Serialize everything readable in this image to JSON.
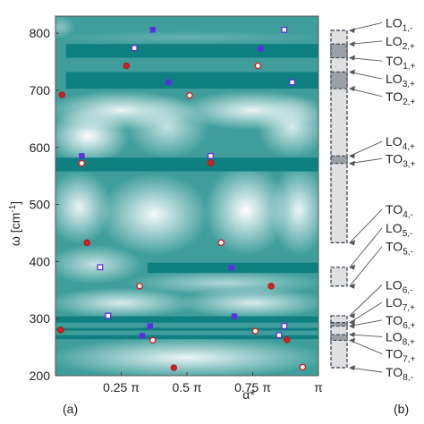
{
  "chart_data": {
    "type": "heatmap",
    "panels": [
      {
        "label": "(a)",
        "description": "2D contour map of ω vs α* with two marker series"
      },
      {
        "label": "(b)",
        "description": "mode band bar with labels"
      }
    ],
    "xlabel": "α*",
    "ylabel": "ω [cm",
    "ylabel_sup": "-1",
    "ylabel_close": "]",
    "xlim": [
      0,
      1
    ],
    "ylim": [
      200,
      830
    ],
    "x_ticks": [
      {
        "value": 0.25,
        "label": "0.25 π"
      },
      {
        "value": 0.5,
        "label": "0.5 π"
      },
      {
        "value": 0.75,
        "label": "0.75 π"
      },
      {
        "value": 1.0,
        "label": "π"
      }
    ],
    "y_ticks": [
      200,
      300,
      400,
      500,
      600,
      700,
      800
    ],
    "colors": {
      "dark": "#0f8080",
      "light": "#ffffff",
      "filled_circle": "#d42020",
      "filled_square": "#5b2fe0",
      "band_fill": "#e0e0e0",
      "band_dark": "#9aa0a4",
      "dash": "#3a4a5a"
    },
    "dark_bands": [
      {
        "y1": 757,
        "y2": 781,
        "x_start": 0.04,
        "x_end": 1.0
      },
      {
        "y1": 703,
        "y2": 732,
        "x_start": 0.04,
        "x_end": 1.0
      },
      {
        "y1": 558,
        "y2": 582,
        "x_start": 0.0,
        "x_end": 1.0
      },
      {
        "y1": 380,
        "y2": 398,
        "x_start": 0.35,
        "x_end": 1.0
      },
      {
        "y1": 293,
        "y2": 304,
        "x_start": 0.0,
        "x_end": 1.0
      },
      {
        "y1": 279,
        "y2": 284,
        "x_start": 0.0,
        "x_end": 1.0
      },
      {
        "y1": 264,
        "y2": 271,
        "x_start": 0.0,
        "x_end": 1.0
      }
    ],
    "series": [
      {
        "name": "",
        "marker": "filled_circle",
        "points": [
          {
            "x": 0.02,
            "y": 280
          },
          {
            "x": 0.025,
            "y": 692
          },
          {
            "x": 0.12,
            "y": 433
          },
          {
            "x": 0.27,
            "y": 743
          },
          {
            "x": 0.45,
            "y": 214
          },
          {
            "x": 0.59,
            "y": 573
          },
          {
            "x": 0.82,
            "y": 357
          },
          {
            "x": 0.88,
            "y": 263
          }
        ]
      },
      {
        "name": "",
        "marker": "open_circle",
        "points": [
          {
            "x": 0.1,
            "y": 572
          },
          {
            "x": 0.32,
            "y": 357
          },
          {
            "x": 0.37,
            "y": 262
          },
          {
            "x": 0.51,
            "y": 691
          },
          {
            "x": 0.63,
            "y": 433
          },
          {
            "x": 0.76,
            "y": 278
          },
          {
            "x": 0.77,
            "y": 743
          },
          {
            "x": 0.94,
            "y": 215
          }
        ]
      },
      {
        "name": "",
        "marker": "filled_square",
        "points": [
          {
            "x": 0.1,
            "y": 585
          },
          {
            "x": 0.33,
            "y": 270
          },
          {
            "x": 0.36,
            "y": 287
          },
          {
            "x": 0.37,
            "y": 806
          },
          {
            "x": 0.43,
            "y": 714
          },
          {
            "x": 0.67,
            "y": 389
          },
          {
            "x": 0.68,
            "y": 304
          },
          {
            "x": 0.78,
            "y": 773
          }
        ]
      },
      {
        "name": "",
        "marker": "open_square",
        "points": [
          {
            "x": 0.17,
            "y": 390
          },
          {
            "x": 0.2,
            "y": 305
          },
          {
            "x": 0.3,
            "y": 774
          },
          {
            "x": 0.59,
            "y": 585
          },
          {
            "x": 0.85,
            "y": 271
          },
          {
            "x": 0.87,
            "y": 287
          },
          {
            "x": 0.87,
            "y": 806
          },
          {
            "x": 0.9,
            "y": 714
          }
        ]
      }
    ],
    "mode_bar": {
      "segments": [
        {
          "y1": 805,
          "y2": 433,
          "style": "light"
        },
        {
          "y1": 781,
          "y2": 757,
          "style": "dark"
        },
        {
          "y1": 732,
          "y2": 703,
          "style": "dark"
        },
        {
          "y1": 585,
          "y2": 572,
          "style": "dark"
        },
        {
          "y1": 390,
          "y2": 357,
          "style": "light"
        },
        {
          "y1": 305,
          "y2": 214,
          "style": "light"
        },
        {
          "y1": 293,
          "y2": 287,
          "style": "dark"
        },
        {
          "y1": 272,
          "y2": 262,
          "style": "dark"
        }
      ],
      "labels": [
        {
          "main": "LO",
          "sub": "1,-",
          "y": 812,
          "target": 805
        },
        {
          "main": "LO",
          "sub": "2,+",
          "y": 780,
          "target": 781
        },
        {
          "main": "TO",
          "sub": "1,+",
          "y": 745,
          "target": 757
        },
        {
          "main": "LO",
          "sub": "3,+",
          "y": 714,
          "target": 732
        },
        {
          "main": "TO",
          "sub": "2,+",
          "y": 683,
          "target": 703
        },
        {
          "main": "LO",
          "sub": "4,+",
          "y": 604,
          "target": 585
        },
        {
          "main": "TO",
          "sub": "3,+",
          "y": 574,
          "target": 572
        },
        {
          "main": "TO",
          "sub": "4,-",
          "y": 485,
          "target": 433
        },
        {
          "main": "LO",
          "sub": "5,-",
          "y": 452,
          "target": 390
        },
        {
          "main": "TO",
          "sub": "5,-",
          "y": 420,
          "target": 357
        },
        {
          "main": "LO",
          "sub": "6,-",
          "y": 353,
          "target": 305
        },
        {
          "main": "LO",
          "sub": "7,+",
          "y": 322,
          "target": 293
        },
        {
          "main": "TO",
          "sub": "6,+",
          "y": 291,
          "target": 287
        },
        {
          "main": "LO",
          "sub": "8,+",
          "y": 262,
          "target": 272
        },
        {
          "main": "TO",
          "sub": "7,+",
          "y": 232,
          "target": 262
        },
        {
          "main": "TO",
          "sub": "8,-",
          "y": 200,
          "target": 214
        }
      ]
    }
  }
}
